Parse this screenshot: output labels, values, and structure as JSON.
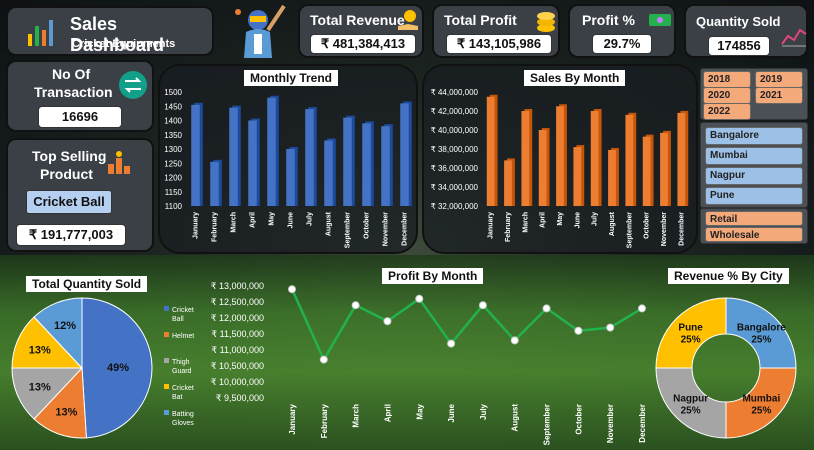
{
  "header": {
    "title": "Sales Dashboard",
    "subtitle": "Cricket Equipments"
  },
  "kpis": {
    "total_revenue": {
      "label": "Total Revenue",
      "value": "₹ 481,384,413"
    },
    "total_profit": {
      "label": "Total Profit",
      "value": "₹ 143,105,986"
    },
    "profit_pct": {
      "label": "Profit %",
      "value": "29.7%"
    },
    "quantity_sold": {
      "label": "Quantity Sold",
      "value": "174856"
    },
    "transactions": {
      "label_line1": "No Of",
      "label_line2": "Transaction",
      "value": "16696"
    },
    "top_product": {
      "label_line1": "Top Selling",
      "label_line2": "Product",
      "product": "Cricket Ball",
      "value": "₹ 191,777,003"
    }
  },
  "slicers": {
    "years": [
      "2018",
      "2019",
      "2020",
      "2021",
      "2022"
    ],
    "cities": [
      "Bangalore",
      "Mumbai",
      "Nagpur",
      "Pune"
    ],
    "types": [
      "Retail",
      "Wholesale"
    ]
  },
  "colors": {
    "blue": "#4472c4",
    "orange": "#ed7d31",
    "gray": "#a5a5a5",
    "yellow": "#ffc000",
    "light_blue": "#5b9bd5",
    "green": "#22b14c"
  },
  "icons": {
    "logo": "bar-chart-icon",
    "revenue": "money-hand-icon",
    "profit": "coins-icon",
    "profit_pct": "cash-icon",
    "quantity": "line-chart-icon",
    "transaction": "exchange-icon",
    "top_product": "trophy-icon",
    "player": "cricket-player-icon"
  },
  "chart_data": [
    {
      "type": "bar",
      "title": "Monthly Trend",
      "categories": [
        "January",
        "February",
        "March",
        "April",
        "May",
        "June",
        "July",
        "August",
        "September",
        "October",
        "November",
        "December"
      ],
      "values": [
        1455,
        1255,
        1445,
        1400,
        1480,
        1300,
        1440,
        1330,
        1410,
        1390,
        1380,
        1460
      ],
      "yticks": [
        "1500",
        "1450",
        "1400",
        "1350",
        "1300",
        "1250",
        "1200",
        "1150",
        "1100"
      ],
      "ylim": [
        1100,
        1500
      ]
    },
    {
      "type": "bar",
      "title": "Sales By Month",
      "categories": [
        "January",
        "February",
        "March",
        "April",
        "May",
        "June",
        "July",
        "August",
        "September",
        "October",
        "November",
        "December"
      ],
      "values": [
        43500000,
        36800000,
        42000000,
        40000000,
        42500000,
        38200000,
        42000000,
        37900000,
        41600000,
        39300000,
        39700000,
        41800000
      ],
      "yticks": [
        "₹ 44,000,000",
        "₹ 42,000,000",
        "₹ 40,000,000",
        "₹ 38,000,000",
        "₹ 36,000,000",
        "₹ 34,000,000",
        "₹ 32,000,000"
      ],
      "ylim": [
        32000000,
        44000000
      ]
    },
    {
      "type": "pie",
      "title": "Total Quantity Sold",
      "categories": [
        "Cricket Ball",
        "Helmet",
        "Thigh Guard",
        "Cricket Bat",
        "Batting Gloves"
      ],
      "values": [
        49,
        13,
        13,
        13,
        12
      ],
      "labels": [
        "49%",
        "13%",
        "13%",
        "13%",
        "12%"
      ]
    },
    {
      "type": "line",
      "title": "Profit By Month",
      "categories": [
        "January",
        "February",
        "March",
        "April",
        "May",
        "June",
        "July",
        "August",
        "September",
        "October",
        "November",
        "December"
      ],
      "values": [
        12900000,
        10700000,
        12400000,
        11900000,
        12600000,
        11200000,
        12400000,
        11300000,
        12300000,
        11600000,
        11700000,
        12300000
      ],
      "yticks": [
        "₹ 13,000,000",
        "₹ 12,500,000",
        "₹ 12,000,000",
        "₹ 11,500,000",
        "₹ 11,000,000",
        "₹ 10,500,000",
        "₹ 10,000,000",
        "₹ 9,500,000"
      ],
      "ylim": [
        9500000,
        13000000
      ]
    },
    {
      "type": "pie",
      "title": "Revenue % By City",
      "categories": [
        "Bangalore",
        "Mumbai",
        "Nagpur",
        "Pune"
      ],
      "values": [
        25,
        25,
        25,
        25
      ],
      "labels": [
        "Bangalore 25%",
        "Mumbai 25%",
        "Nagpur 25%",
        "Pune 25%"
      ]
    }
  ]
}
